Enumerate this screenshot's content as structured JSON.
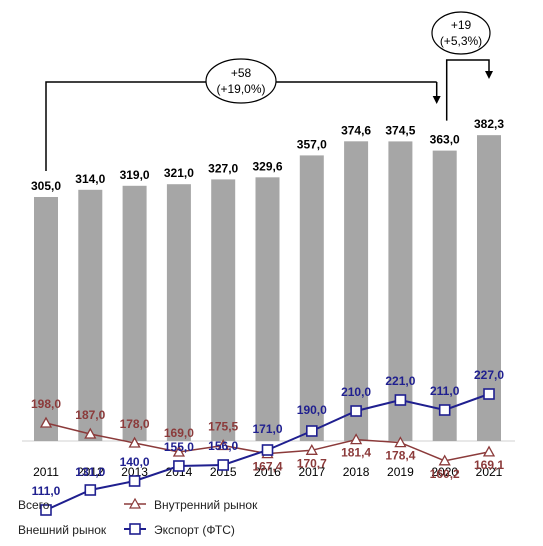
{
  "chart_data": {
    "type": "bar",
    "categories": [
      "2011",
      "2012",
      "2013",
      "2014",
      "2015",
      "2016",
      "2017",
      "2018",
      "2019",
      "2020",
      "2021"
    ],
    "series": [
      {
        "name": "Всего",
        "kind": "bar",
        "color": "#a6a6a6",
        "values": [
          305.0,
          314.0,
          319.0,
          321.0,
          327.0,
          329.6,
          357.0,
          374.6,
          374.5,
          363.0,
          382.3
        ],
        "labels": [
          "305,0",
          "314,0",
          "319,0",
          "321,0",
          "327,0",
          "329,6",
          "357,0",
          "374,6",
          "374,5",
          "363,0",
          "382,3"
        ]
      },
      {
        "name": "Внутренний рынок",
        "kind": "line",
        "color": "#8b3a3a",
        "marker": "triangle",
        "values": [
          198.0,
          187.0,
          178.0,
          169.0,
          175.5,
          167.4,
          170.7,
          181.4,
          178.4,
          160.2,
          169.1
        ],
        "labels": [
          "198,0",
          "187,0",
          "178,0",
          "169,0",
          "175,5",
          "167,4",
          "170,7",
          "181,4",
          "178,4",
          "160,2",
          "169,1"
        ]
      },
      {
        "name": "Экспорт (ФТС)",
        "kind": "line",
        "color": "#1f1f8f",
        "marker": "square",
        "values": [
          111.0,
          131.0,
          140.0,
          155.0,
          156.0,
          171.0,
          190.0,
          210.0,
          221.0,
          211.0,
          227.0
        ],
        "labels": [
          "111,0",
          "131,0",
          "140,0",
          "155,0",
          "156,0",
          "171,0",
          "190,0",
          "210,0",
          "221,0",
          "211,0",
          "227,0"
        ]
      }
    ],
    "annotations": [
      {
        "from": "2011",
        "to": "2020",
        "line1": "+58",
        "line2": "(+19,0%)"
      },
      {
        "from": "2020",
        "to": "2021",
        "line1": "+19",
        "line2": "(+5,3%)"
      }
    ],
    "legend": {
      "position": "bottom-left",
      "items": [
        {
          "label": "Всего",
          "symbol": "none"
        },
        {
          "label": "Внутренний рынок",
          "symbol": "triangle-line"
        },
        {
          "label": "Внешний рынок",
          "symbol": "none"
        },
        {
          "label": "Экспорт (ФТС)",
          "symbol": "square-line"
        }
      ]
    },
    "grid": false
  }
}
